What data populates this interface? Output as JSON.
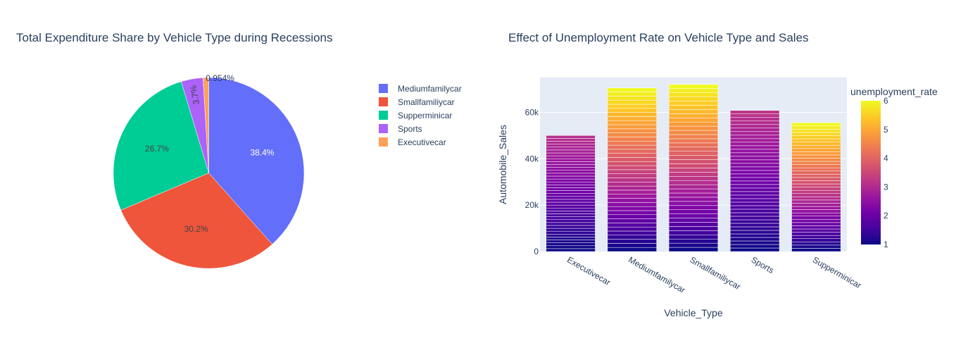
{
  "chart_data": [
    {
      "type": "pie",
      "title": "Total Expenditure Share by Vehicle Type during Recessions",
      "labels": [
        "Mediumfamilycar",
        "Smallfamiliycar",
        "Supperminicar",
        "Sports",
        "Executivecar"
      ],
      "values": [
        38.4,
        30.2,
        26.7,
        3.7,
        0.954
      ],
      "text_labels": [
        "38.4%",
        "30.2%",
        "26.7%",
        "3.7%",
        "0.954%"
      ],
      "colors": [
        "#636efa",
        "#EF553B",
        "#00cc96",
        "#ab63fa",
        "#FFA15A"
      ],
      "legend_position": "right"
    },
    {
      "type": "bar",
      "title": "Effect of Unemployment Rate on Vehicle Type and Sales",
      "xlabel": "Vehicle_Type",
      "ylabel": "Automobile_Sales",
      "categories": [
        "Executivecar",
        "Mediumfamilycar",
        "Smallfamiliycar",
        "Sports",
        "Supperminicar"
      ],
      "totals": [
        50000,
        70500,
        72000,
        60800,
        55500
      ],
      "max_unemployment_rate": [
        3.1,
        6.0,
        6.0,
        3.2,
        6.0
      ],
      "ylim": [
        0,
        75000
      ],
      "y_ticks": [
        0,
        20000,
        40000,
        60000
      ],
      "y_tick_labels": [
        "0",
        "20k",
        "40k",
        "60k"
      ],
      "colorbar": {
        "title": "unemployment_rate",
        "range": [
          1,
          6
        ],
        "ticks": [
          "1",
          "2",
          "3",
          "4",
          "5",
          "6"
        ],
        "colors": [
          "#0d0887",
          "#46039f",
          "#7201a8",
          "#9c179e",
          "#bd3786",
          "#d8576b",
          "#ed7953",
          "#fb9f3a",
          "#fdca26",
          "#f0f921"
        ]
      }
    }
  ]
}
